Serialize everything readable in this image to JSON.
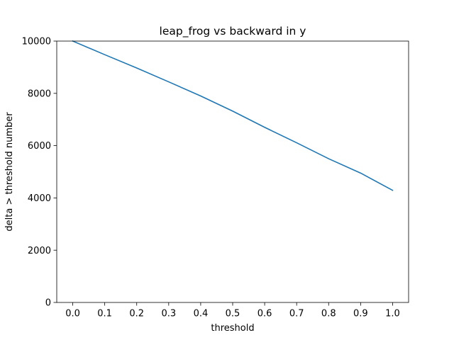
{
  "chart_data": {
    "type": "line",
    "title": "leap_frog vs backward in y",
    "xlabel": "threshold",
    "ylabel": "delta > threshold number",
    "xlim": [
      -0.05,
      1.05
    ],
    "ylim": [
      0,
      10000
    ],
    "xticks": [
      0.0,
      0.1,
      0.2,
      0.3,
      0.4,
      0.5,
      0.6,
      0.7,
      0.8,
      0.9,
      1.0
    ],
    "xtick_labels": [
      "0.0",
      "0.1",
      "0.2",
      "0.3",
      "0.4",
      "0.5",
      "0.6",
      "0.7",
      "0.8",
      "0.9",
      "1.0"
    ],
    "yticks": [
      0,
      2000,
      4000,
      6000,
      8000,
      10000
    ],
    "ytick_labels": [
      "0",
      "2000",
      "4000",
      "6000",
      "8000",
      "10000"
    ],
    "grid": false,
    "series": [
      {
        "color": "#1f77b4",
        "x": [
          0.0,
          0.1,
          0.2,
          0.3,
          0.4,
          0.5,
          0.6,
          0.7,
          0.8,
          0.9,
          1.0
        ],
        "y": [
          10000,
          9480,
          8970,
          8440,
          7900,
          7320,
          6700,
          6110,
          5500,
          4950,
          4290
        ]
      }
    ]
  }
}
